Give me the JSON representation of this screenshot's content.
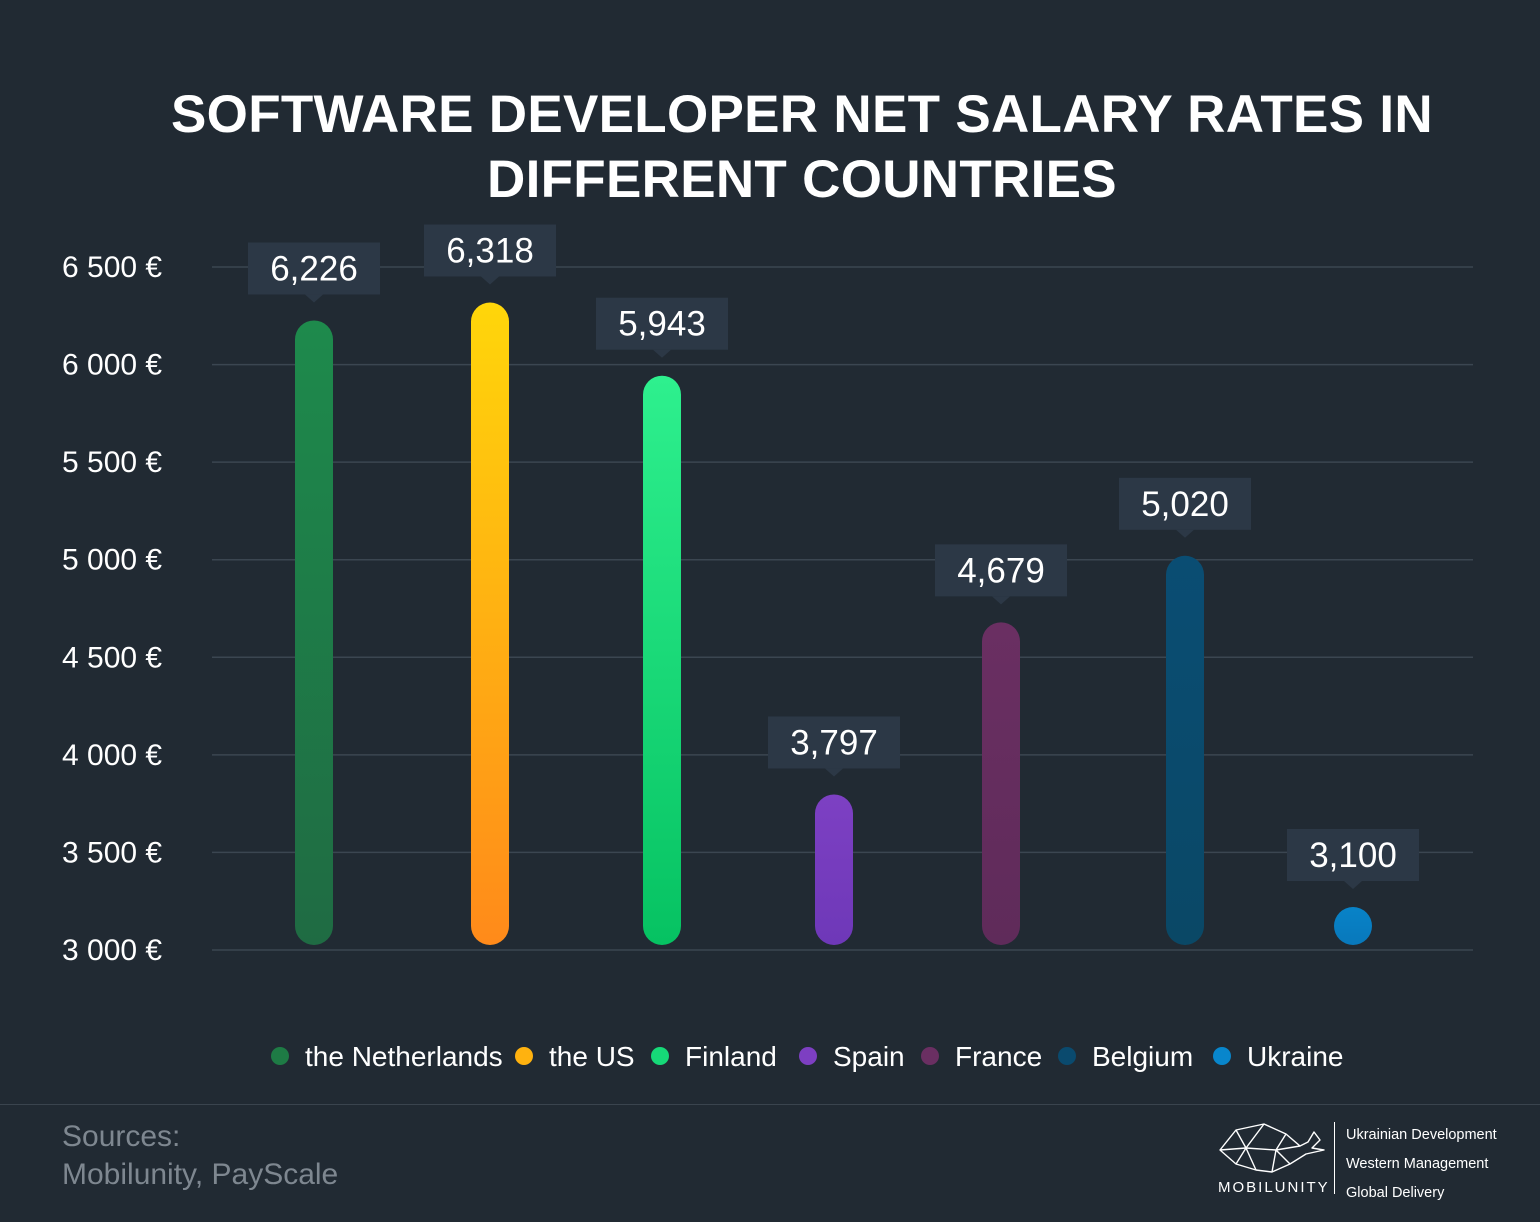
{
  "title": {
    "line1": "SOFTWARE DEVELOPER NET SALARY RATES IN",
    "line2": "DIFFERENT COUNTRIES"
  },
  "chart_data": {
    "type": "bar",
    "title": "SOFTWARE DEVELOPER NET SALARY RATES IN DIFFERENT COUNTRIES",
    "xlabel": "",
    "ylabel": "",
    "ylim": [
      3000,
      6500
    ],
    "y_ticks": [
      {
        "value": 3000,
        "label": "3 000 €"
      },
      {
        "value": 3500,
        "label": "3 500 €"
      },
      {
        "value": 4000,
        "label": "4 000 €"
      },
      {
        "value": 4500,
        "label": "4 500 €"
      },
      {
        "value": 5000,
        "label": "5 000 €"
      },
      {
        "value": 5500,
        "label": "5 500 €"
      },
      {
        "value": 6000,
        "label": "6 000 €"
      },
      {
        "value": 6500,
        "label": "6 500 €"
      }
    ],
    "grid": true,
    "legend_position": "bottom",
    "categories": [
      "the Netherlands",
      "the US",
      "Finland",
      "Spain",
      "France",
      "Belgium",
      "Ukraine"
    ],
    "values": [
      6226,
      6318,
      5943,
      3797,
      4679,
      5020,
      3100
    ],
    "value_labels": [
      "6,226",
      "6,318",
      "5,943",
      "3,797",
      "4,679",
      "5,020",
      "3,100"
    ],
    "colors": [
      {
        "top": "#1e8a4c",
        "bottom": "#1f6b43"
      },
      {
        "top": "#ffd60a",
        "bottom": "#ff8a1a"
      },
      {
        "top": "#2ef08e",
        "bottom": "#06c262"
      },
      {
        "top": "#7d40c3",
        "bottom": "#6e38b8"
      },
      {
        "top": "#6a2f62",
        "bottom": "#5f2b5a"
      },
      {
        "top": "#0a4d73",
        "bottom": "#0a4866"
      },
      {
        "top": "#0883c8",
        "bottom": "#0878bb"
      }
    ],
    "legend_colors": [
      "#1e7b45",
      "#ffb20f",
      "#16d978",
      "#7d3fc2",
      "#6a2f62",
      "#0a4a6e",
      "#0886cc"
    ]
  },
  "sources": {
    "label": "Sources:",
    "text": "Mobilunity, PayScale"
  },
  "logo": {
    "brand": "MOBILUNITY",
    "icon": "whale-icon",
    "taglines": [
      "Ukrainian Development",
      "Western Management",
      "Global Delivery"
    ]
  }
}
